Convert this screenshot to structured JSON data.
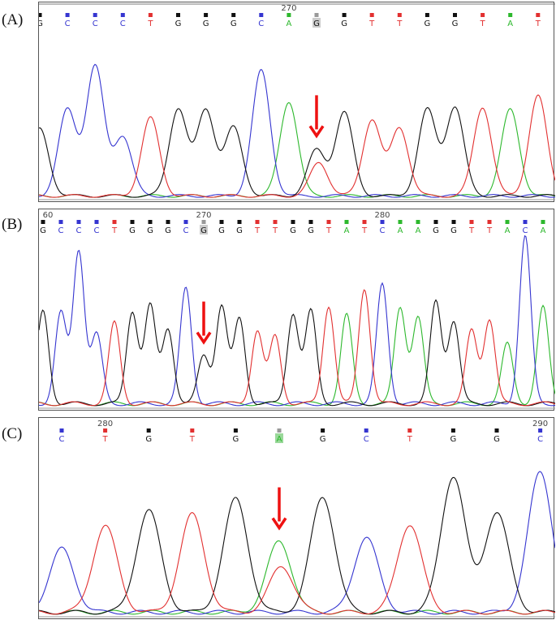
{
  "colors": {
    "A": "#2db82d",
    "C": "#3535d0",
    "G": "#111111",
    "T": "#e23030",
    "arrow": "#ee1111"
  },
  "chart_data": [
    {
      "type": "chromatogram",
      "label": "(A)",
      "bases": [
        "G",
        "C",
        "C",
        "C",
        "T",
        "G",
        "G",
        "G",
        "C",
        "A",
        "G",
        "G",
        "T",
        "T",
        "G",
        "G",
        "T",
        "A",
        "T"
      ],
      "peak_heights": [
        0.48,
        0.62,
        0.93,
        0.43,
        0.56,
        0.63,
        0.62,
        0.49,
        0.9,
        0.68,
        0.33,
        0.6,
        0.55,
        0.49,
        0.62,
        0.64,
        0.64,
        0.62,
        0.72
      ],
      "secondary_peaks": [
        {
          "index": 10,
          "base": "T",
          "height": 0.24
        }
      ],
      "position_labels": [
        {
          "index": 9,
          "text": "270"
        }
      ],
      "highlighted_index": 10,
      "arrow_index": 10
    },
    {
      "type": "chromatogram",
      "label": "(B)",
      "bases": [
        "G",
        "C",
        "C",
        "C",
        "T",
        "G",
        "G",
        "G",
        "C",
        "G",
        "G",
        "G",
        "T",
        "T",
        "G",
        "G",
        "T",
        "A",
        "T",
        "C",
        "A",
        "A",
        "G",
        "G",
        "T",
        "T",
        "A",
        "C",
        "A"
      ],
      "peak_heights": [
        0.48,
        0.47,
        0.8,
        0.36,
        0.42,
        0.48,
        0.51,
        0.39,
        0.6,
        0.25,
        0.51,
        0.44,
        0.38,
        0.35,
        0.47,
        0.48,
        0.51,
        0.46,
        0.6,
        0.62,
        0.5,
        0.45,
        0.53,
        0.43,
        0.38,
        0.44,
        0.31,
        0.87,
        0.5
      ],
      "secondary_peaks": [],
      "position_labels": [
        {
          "index": 0,
          "text": "60"
        },
        {
          "index": 9,
          "text": "270"
        },
        {
          "index": 19,
          "text": "280"
        }
      ],
      "highlighted_index": 9,
      "arrow_index": 9
    },
    {
      "type": "chromatogram",
      "label": "(C)",
      "bases": [
        "C",
        "T",
        "G",
        "T",
        "G",
        "A",
        "G",
        "C",
        "T",
        "G",
        "G",
        "C"
      ],
      "peak_heights": [
        0.33,
        0.45,
        0.53,
        0.51,
        0.59,
        0.37,
        0.6,
        0.39,
        0.46,
        0.71,
        0.52,
        0.73
      ],
      "secondary_peaks": [
        {
          "index": 5,
          "base": "T",
          "height": 0.24
        }
      ],
      "position_labels": [
        {
          "index": 1,
          "text": "280"
        },
        {
          "index": 11,
          "text": "290"
        }
      ],
      "highlighted_index": 5,
      "arrow_index": 5
    }
  ]
}
